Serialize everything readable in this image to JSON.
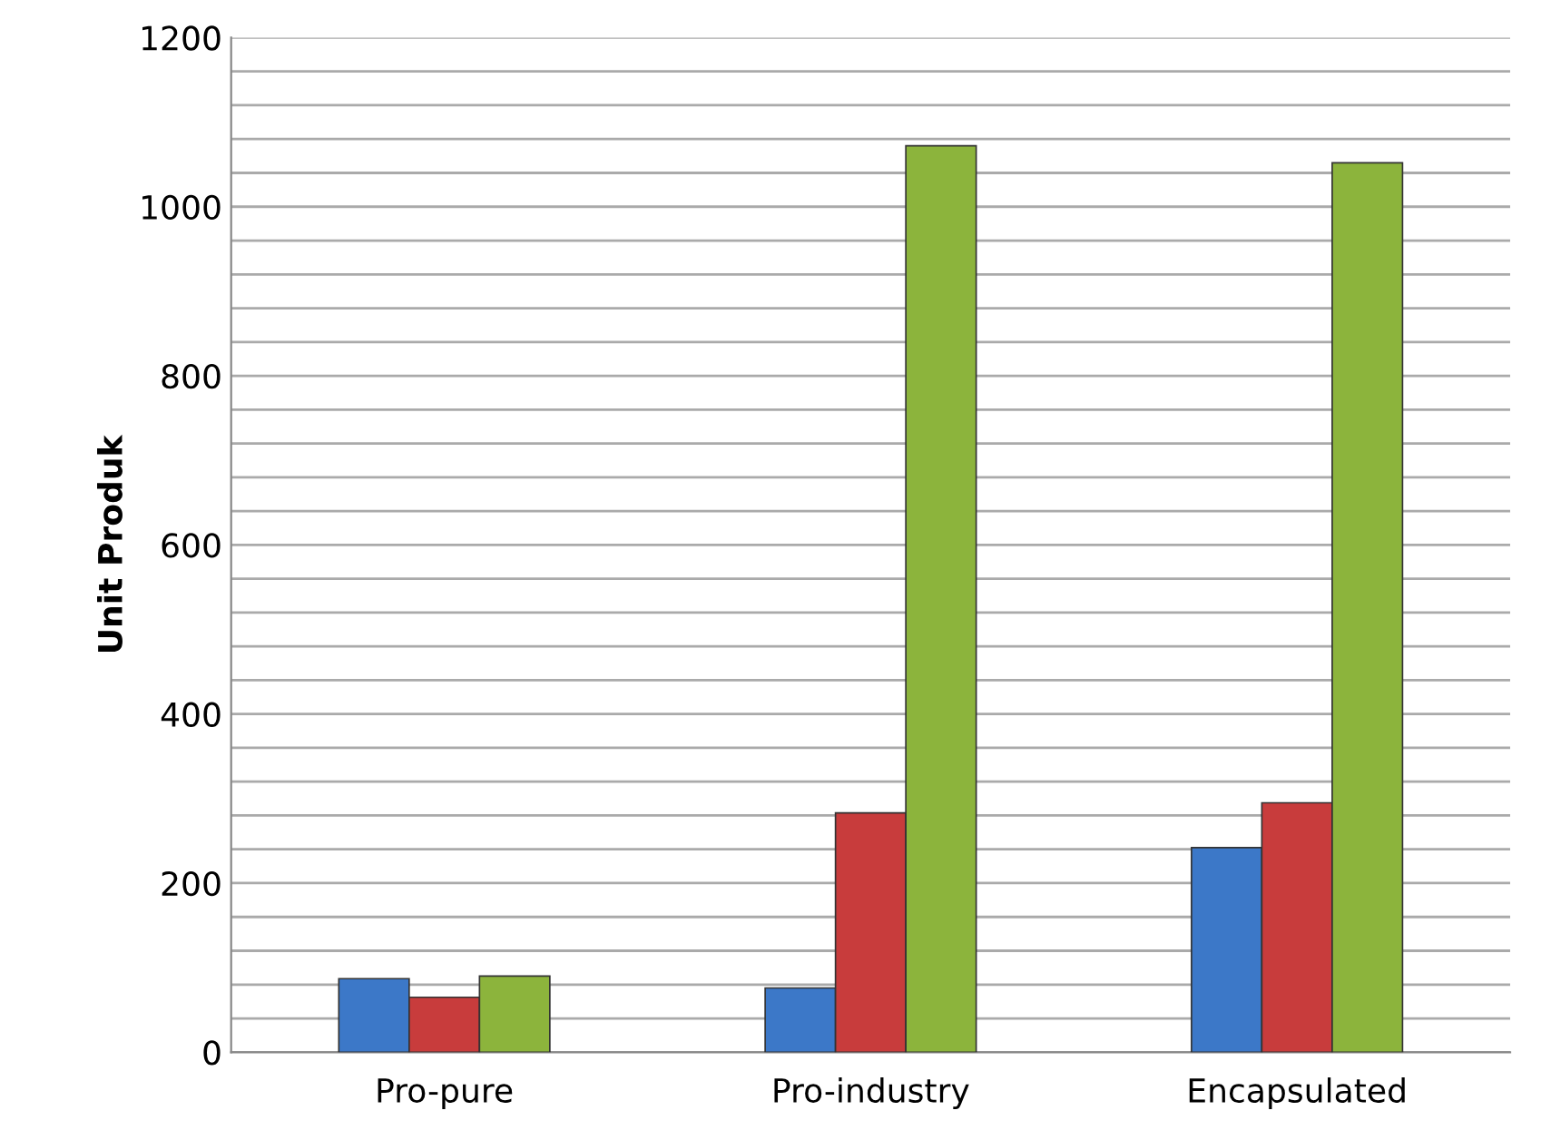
{
  "chart_data": {
    "type": "bar",
    "ylabel": "Unit Produk",
    "categories": [
      "Pro-pure",
      "Pro-industry",
      "Encapsulated"
    ],
    "series": [
      {
        "color": "#3c78c8",
        "values": [
          87,
          76,
          242
        ]
      },
      {
        "color": "#c83c3c",
        "values": [
          65,
          283,
          295
        ]
      },
      {
        "color": "#8cb43c",
        "values": [
          90,
          1072,
          1052
        ]
      }
    ],
    "ylim": [
      0,
      1200
    ],
    "yticks": [
      0,
      {
        "value": 40,
        "label": null
      },
      {
        "value": 80,
        "label": null
      },
      {
        "value": 120,
        "label": null
      },
      {
        "value": 160,
        "label": null
      },
      200,
      {
        "value": 240,
        "label": null
      },
      {
        "value": 280,
        "label": null
      },
      {
        "value": 320,
        "label": null
      },
      {
        "value": 360,
        "label": null
      },
      400,
      {
        "value": 440,
        "label": null
      },
      {
        "value": 480,
        "label": null
      },
      {
        "value": 520,
        "label": null
      },
      {
        "value": 560,
        "label": null
      },
      600,
      {
        "value": 640,
        "label": null
      },
      {
        "value": 680,
        "label": null
      },
      {
        "value": 720,
        "label": null
      },
      {
        "value": 760,
        "label": null
      },
      800,
      {
        "value": 840,
        "label": null
      },
      {
        "value": 880,
        "label": null
      },
      {
        "value": 920,
        "label": null
      },
      {
        "value": 960,
        "label": null
      },
      1000,
      {
        "value": 1040,
        "label": null
      },
      {
        "value": 1080,
        "label": null
      },
      {
        "value": 1120,
        "label": null
      },
      {
        "value": 1160,
        "label": null
      },
      1200
    ],
    "grid": "y"
  }
}
